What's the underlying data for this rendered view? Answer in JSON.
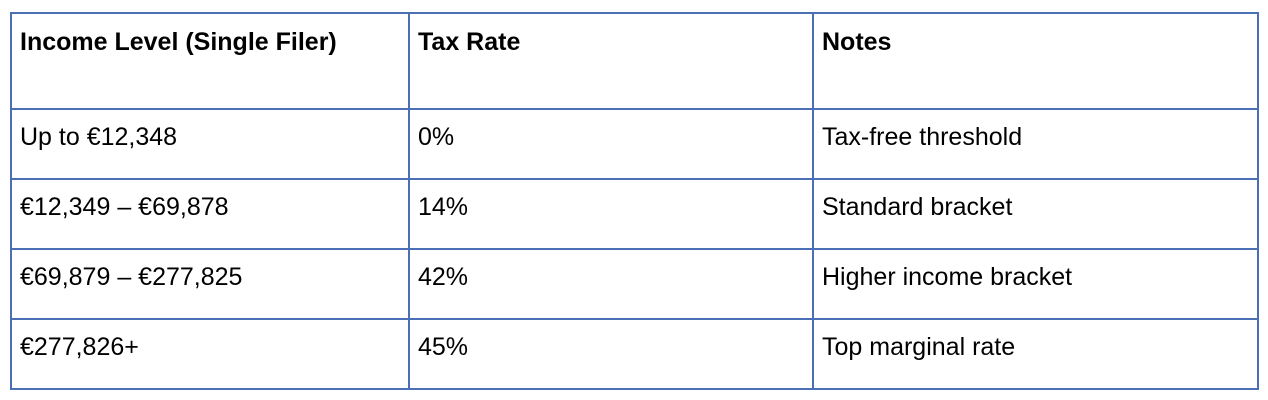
{
  "table": {
    "headers": [
      "Income Level (Single Filer)",
      "Tax Rate",
      "Notes"
    ],
    "rows": [
      [
        "Up to €12,348",
        "0%",
        "Tax-free threshold"
      ],
      [
        "€12,349 – €69,878",
        "14%",
        "Standard bracket"
      ],
      [
        "€69,879 – €277,825",
        "42%",
        "Higher income bracket"
      ],
      [
        "€277,826+",
        "45%",
        "Top marginal rate"
      ]
    ]
  },
  "colors": {
    "border": "#4a6fb5"
  }
}
